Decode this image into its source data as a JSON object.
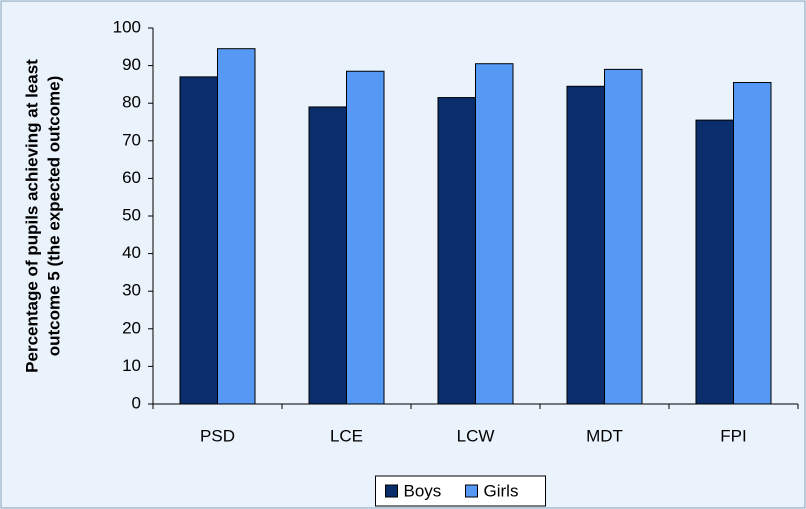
{
  "chart_data": {
    "type": "bar",
    "ylabel": [
      "Percentage of pupils achieving at least",
      "outcome 5 (the expected outcome)"
    ],
    "categories": [
      "PSD",
      "LCE",
      "LCW",
      "MDT",
      "FPI"
    ],
    "series": [
      {
        "name": "Boys",
        "color": "#0a2e6b",
        "values": [
          87,
          79,
          81.5,
          84.5,
          75.5
        ]
      },
      {
        "name": "Girls",
        "color": "#5599f5",
        "values": [
          94.5,
          88.5,
          90.5,
          89,
          85.5
        ]
      }
    ],
    "ylim": [
      0,
      100
    ],
    "yticks": [
      0,
      10,
      20,
      30,
      40,
      50,
      60,
      70,
      80,
      90,
      100
    ],
    "legend": "bottom"
  }
}
